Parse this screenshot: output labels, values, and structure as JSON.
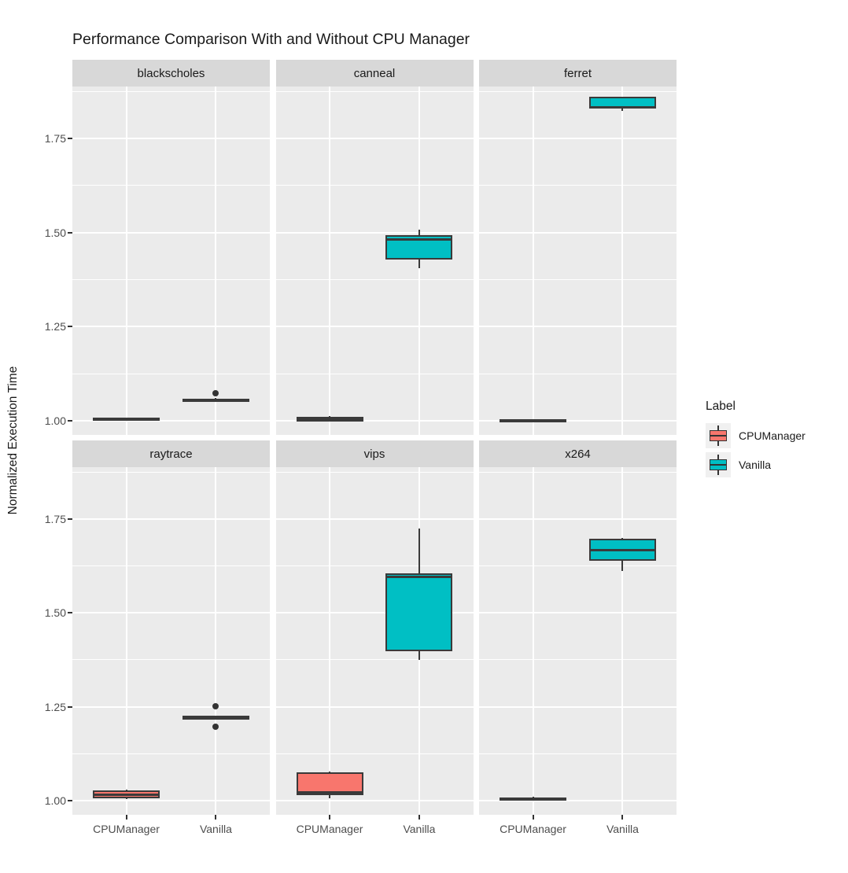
{
  "title": "Performance Comparison With and Without CPU Manager",
  "axes": {
    "y_title": "Normalized Execution Time",
    "y_tick_labels": [
      "1.00",
      "1.25",
      "1.50",
      "1.75"
    ],
    "x_categories": [
      "CPUManager",
      "Vanilla"
    ]
  },
  "legend": {
    "title": "Label",
    "entries": [
      {
        "label": "CPUManager",
        "color": "#F8766D"
      },
      {
        "label": "Vanilla",
        "color": "#00BFC4"
      }
    ]
  },
  "colors": {
    "panel_background": "#EBEBEB",
    "strip_background": "#D8D8D8",
    "gridline": "#FFFFFF",
    "box_outline": "#3A3A3A",
    "axis_text": "#4D4D4D",
    "cpumanager_fill": "#F8766D",
    "vanilla_fill": "#00BFC4"
  },
  "chart_data": {
    "type": "boxplot",
    "title": "Performance Comparison With and Without CPU Manager",
    "ylabel": "Normalized Execution Time",
    "xlabel": "",
    "ylim": [
      0.962,
      1.8885
    ],
    "y_major_ticks": [
      1.0,
      1.25,
      1.5,
      1.75
    ],
    "y_minor_ticks": [
      1.125,
      1.375,
      1.625,
      1.875
    ],
    "categories": [
      "CPUManager",
      "Vanilla"
    ],
    "legend_title": "Label",
    "legend_position": "right",
    "grid": "on",
    "facet_layout": {
      "rows": 2,
      "cols": 3
    },
    "facets": [
      {
        "name": "blackscholes",
        "boxes": [
          {
            "group": "CPUManager",
            "min": 1.002,
            "q1": 1.003,
            "median": 1.005,
            "q3": 1.007,
            "max": 1.008,
            "outliers": []
          },
          {
            "group": "Vanilla",
            "min": 1.051,
            "q1": 1.053,
            "median": 1.056,
            "q3": 1.059,
            "max": 1.061,
            "outliers": [
              1.073
            ]
          }
        ]
      },
      {
        "name": "canneal",
        "boxes": [
          {
            "group": "CPUManager",
            "min": 0.997,
            "q1": 0.998,
            "median": 1.002,
            "q3": 1.011,
            "max": 1.012,
            "outliers": []
          },
          {
            "group": "Vanilla",
            "min": 1.405,
            "q1": 1.428,
            "median": 1.482,
            "q3": 1.494,
            "max": 1.507,
            "outliers": []
          }
        ]
      },
      {
        "name": "ferret",
        "boxes": [
          {
            "group": "CPUManager",
            "min": 0.998,
            "q1": 0.999,
            "median": 1.001,
            "q3": 1.003,
            "max": 1.004,
            "outliers": []
          },
          {
            "group": "Vanilla",
            "min": 1.823,
            "q1": 1.83,
            "median": 1.834,
            "q3": 1.861,
            "max": 1.862,
            "outliers": []
          }
        ]
      },
      {
        "name": "raytrace",
        "boxes": [
          {
            "group": "CPUManager",
            "min": 1.003,
            "q1": 1.005,
            "median": 1.015,
            "q3": 1.027,
            "max": 1.029,
            "outliers": []
          },
          {
            "group": "Vanilla",
            "min": 1.22,
            "q1": 1.221,
            "median": 1.222,
            "q3": 1.223,
            "max": 1.224,
            "outliers": [
              1.252,
              1.196
            ]
          }
        ]
      },
      {
        "name": "vips",
        "boxes": [
          {
            "group": "CPUManager",
            "min": 1.005,
            "q1": 1.015,
            "median": 1.021,
            "q3": 1.076,
            "max": 1.077,
            "outliers": []
          },
          {
            "group": "Vanilla",
            "min": 1.374,
            "q1": 1.399,
            "median": 1.597,
            "q3": 1.606,
            "max": 1.724,
            "outliers": []
          }
        ]
      },
      {
        "name": "x264",
        "boxes": [
          {
            "group": "CPUManager",
            "min": 1.002,
            "q1": 1.003,
            "median": 1.006,
            "q3": 1.009,
            "max": 1.01,
            "outliers": []
          },
          {
            "group": "Vanilla",
            "min": 1.612,
            "q1": 1.64,
            "median": 1.668,
            "q3": 1.698,
            "max": 1.699,
            "outliers": []
          }
        ]
      }
    ]
  }
}
